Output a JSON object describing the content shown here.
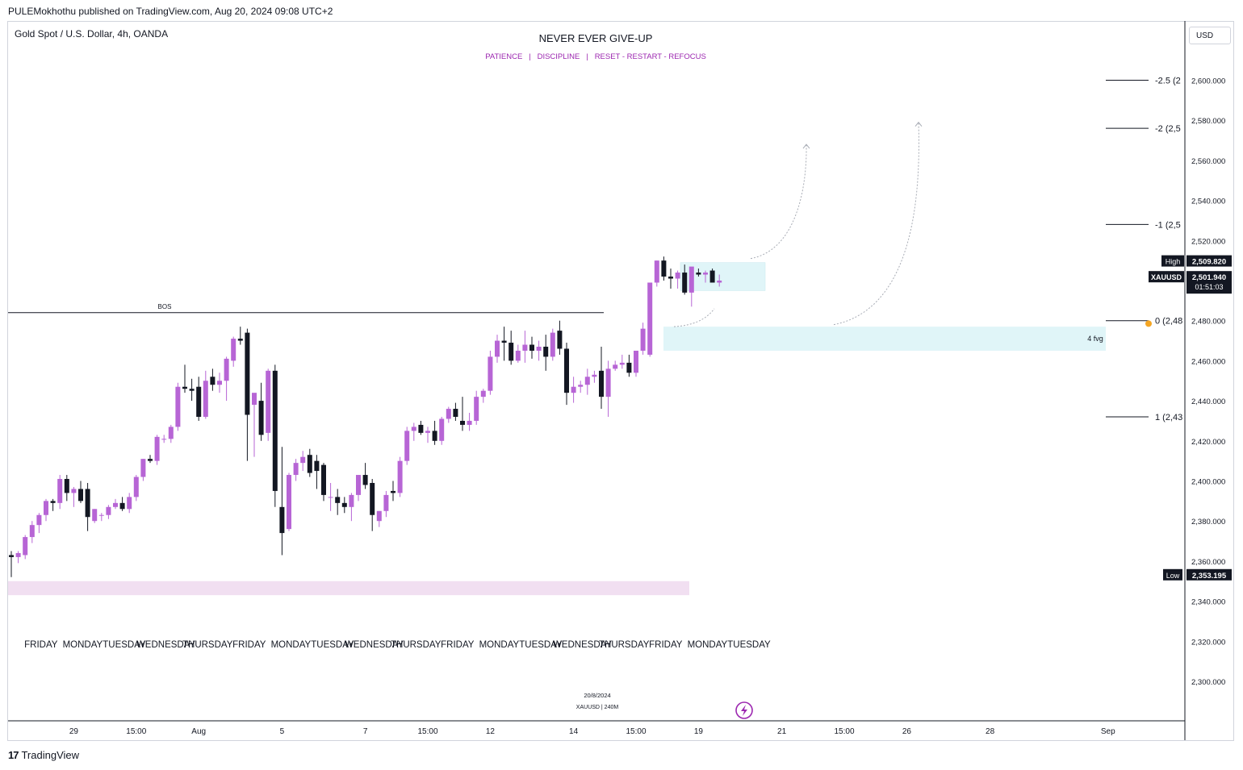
{
  "publish_line": "PULEMokhothu published on TradingView.com, Aug 20, 2024 09:08 UTC+2",
  "footer_logo": "TradingView",
  "chart_data": {
    "type": "candlestick",
    "symbol_title": "Gold Spot / U.S. Dollar, 4h, OANDA",
    "title": "NEVER EVER GIVE-UP",
    "subtitle": "PATIENCE   |   DISCIPLINE   |   RESET - RESTART - REFOCUS",
    "currency": "USD",
    "ylim": [
      2280,
      2620
    ],
    "y_ticks": [
      "2,600.000",
      "2,580.000",
      "2,560.000",
      "2,540.000",
      "2,520.000",
      "2,500.000",
      "2,480.000",
      "2,460.000",
      "2,440.000",
      "2,420.000",
      "2,400.000",
      "2,380.000",
      "2,360.000",
      "2,340.000",
      "2,320.000",
      "2,300.000"
    ],
    "y_tick_values": [
      2600,
      2580,
      2560,
      2540,
      2520,
      2500,
      2480,
      2460,
      2440,
      2420,
      2400,
      2380,
      2360,
      2340,
      2320,
      2300
    ],
    "x_ticks": [
      {
        "label": "29",
        "bar": 9
      },
      {
        "label": "15:00",
        "bar": 18
      },
      {
        "label": "Aug",
        "bar": 27
      },
      {
        "label": "5",
        "bar": 39
      },
      {
        "label": "7",
        "bar": 51
      },
      {
        "label": "15:00",
        "bar": 60
      },
      {
        "label": "12",
        "bar": 69
      },
      {
        "label": "14",
        "bar": 81
      },
      {
        "label": "15:00",
        "bar": 90
      },
      {
        "label": "19",
        "bar": 99
      },
      {
        "label": "21",
        "bar": 111
      },
      {
        "label": "15:00",
        "bar": 120
      },
      {
        "label": "26",
        "bar": 129
      },
      {
        "label": "28",
        "bar": 141
      },
      {
        "label": "Sep",
        "bar": 158
      }
    ],
    "day_labels": [
      {
        "label": "FRIDAY",
        "bar": 3
      },
      {
        "label": "MONDAY",
        "bar": 9
      },
      {
        "label": "TUESDAY",
        "bar": 15
      },
      {
        "label": "WEDNESDAY",
        "bar": 21
      },
      {
        "label": "THURSDAY",
        "bar": 27
      },
      {
        "label": "FRIDAY",
        "bar": 33
      },
      {
        "label": "MONDAY",
        "bar": 39
      },
      {
        "label": "TUESDAY",
        "bar": 45
      },
      {
        "label": "WEDNESDAY",
        "bar": 51
      },
      {
        "label": "THURSDAY",
        "bar": 57
      },
      {
        "label": "FRIDAY",
        "bar": 63
      },
      {
        "label": "MONDAY",
        "bar": 69
      },
      {
        "label": "TUESDAY",
        "bar": 75
      },
      {
        "label": "WEDNESDAY",
        "bar": 81
      },
      {
        "label": "THURSDAY",
        "bar": 87
      },
      {
        "label": "FRIDAY",
        "bar": 93
      },
      {
        "label": "MONDAY",
        "bar": 99
      },
      {
        "label": "TUESDAY",
        "bar": 105
      }
    ],
    "candles": [
      [
        2363,
        2365,
        2352,
        2362
      ],
      [
        2362,
        2365,
        2359,
        2364
      ],
      [
        2363,
        2373,
        2361,
        2372
      ],
      [
        2372,
        2380,
        2369,
        2378
      ],
      [
        2378,
        2384,
        2374,
        2383
      ],
      [
        2383,
        2391,
        2380,
        2390
      ],
      [
        2390,
        2391,
        2385,
        2389
      ],
      [
        2389,
        2403,
        2386,
        2401
      ],
      [
        2401,
        2403,
        2390,
        2394
      ],
      [
        2394,
        2397,
        2387,
        2396
      ],
      [
        2396,
        2400,
        2389,
        2390
      ],
      [
        2396,
        2399,
        2375,
        2382
      ],
      [
        2380,
        2386,
        2379,
        2386
      ],
      [
        2383,
        2384,
        2380,
        2383
      ],
      [
        2383,
        2388,
        2381,
        2387
      ],
      [
        2387,
        2391,
        2386,
        2389
      ],
      [
        2389,
        2392,
        2385,
        2386
      ],
      [
        2386,
        2394,
        2384,
        2392
      ],
      [
        2392,
        2403,
        2390,
        2402
      ],
      [
        2402,
        2411,
        2400,
        2411
      ],
      [
        2411,
        2413,
        2409,
        2410
      ],
      [
        2410,
        2423,
        2408,
        2422
      ],
      [
        2421,
        2423,
        2419,
        2421
      ],
      [
        2421,
        2428,
        2419,
        2427
      ],
      [
        2427,
        2449,
        2425,
        2447
      ],
      [
        2447,
        2458,
        2444,
        2446
      ],
      [
        2446,
        2451,
        2440,
        2445
      ],
      [
        2447,
        2452,
        2430,
        2432
      ],
      [
        2432,
        2455,
        2431,
        2450
      ],
      [
        2452,
        2456,
        2445,
        2448
      ],
      [
        2448,
        2454,
        2444,
        2450
      ],
      [
        2450,
        2462,
        2440,
        2461
      ],
      [
        2460,
        2472,
        2457,
        2471
      ],
      [
        2471,
        2477,
        2468,
        2470
      ],
      [
        2474,
        2476,
        2410,
        2433
      ],
      [
        2438,
        2441,
        2412,
        2444
      ],
      [
        2440,
        2449,
        2420,
        2423
      ],
      [
        2424,
        2456,
        2420,
        2455
      ],
      [
        2455,
        2458,
        2387,
        2395
      ],
      [
        2387,
        2417,
        2363,
        2374
      ],
      [
        2376,
        2404,
        2375,
        2403
      ],
      [
        2403,
        2411,
        2400,
        2409
      ],
      [
        2409,
        2415,
        2405,
        2412
      ],
      [
        2413,
        2416,
        2402,
        2404
      ],
      [
        2410,
        2413,
        2396,
        2405
      ],
      [
        2408,
        2409,
        2390,
        2393
      ],
      [
        2392,
        2399,
        2385,
        2392
      ],
      [
        2392,
        2396,
        2383,
        2389
      ],
      [
        2389,
        2392,
        2384,
        2387
      ],
      [
        2387,
        2394,
        2380,
        2393
      ],
      [
        2393,
        2403,
        2390,
        2403
      ],
      [
        2403,
        2409,
        2396,
        2398
      ],
      [
        2399,
        2401,
        2375,
        2383
      ],
      [
        2380,
        2385,
        2377,
        2385
      ],
      [
        2385,
        2395,
        2382,
        2393
      ],
      [
        2395,
        2400,
        2390,
        2394
      ],
      [
        2394,
        2412,
        2392,
        2410
      ],
      [
        2410,
        2427,
        2408,
        2425
      ],
      [
        2425,
        2429,
        2420,
        2427
      ],
      [
        2428,
        2430,
        2423,
        2424
      ],
      [
        2424,
        2427,
        2419,
        2425
      ],
      [
        2425,
        2430,
        2418,
        2420
      ],
      [
        2420,
        2432,
        2418,
        2431
      ],
      [
        2431,
        2437,
        2429,
        2436
      ],
      [
        2436,
        2439,
        2430,
        2432
      ],
      [
        2430,
        2442,
        2425,
        2428
      ],
      [
        2428,
        2434,
        2425,
        2430
      ],
      [
        2430,
        2445,
        2428,
        2442
      ],
      [
        2442,
        2446,
        2439,
        2445
      ],
      [
        2445,
        2465,
        2443,
        2462
      ],
      [
        2462,
        2473,
        2459,
        2470
      ],
      [
        2470,
        2477,
        2460,
        2469
      ],
      [
        2469,
        2475,
        2458,
        2460
      ],
      [
        2460,
        2468,
        2459,
        2465
      ],
      [
        2465,
        2475,
        2459,
        2468
      ],
      [
        2468,
        2472,
        2461,
        2465
      ],
      [
        2465,
        2470,
        2460,
        2467
      ],
      [
        2467,
        2473,
        2455,
        2462
      ],
      [
        2462,
        2476,
        2460,
        2474
      ],
      [
        2475,
        2480,
        2463,
        2466
      ],
      [
        2466,
        2469,
        2438,
        2444
      ],
      [
        2444,
        2452,
        2439,
        2447
      ],
      [
        2447,
        2450,
        2444,
        2448
      ],
      [
        2448,
        2456,
        2443,
        2452
      ],
      [
        2452,
        2455,
        2449,
        2453
      ],
      [
        2455,
        2467,
        2436,
        2442
      ],
      [
        2442,
        2460,
        2432,
        2456
      ],
      [
        2456,
        2460,
        2455,
        2458
      ],
      [
        2458,
        2463,
        2456,
        2459
      ],
      [
        2459,
        2463,
        2452,
        2454
      ],
      [
        2454,
        2465,
        2452,
        2465
      ],
      [
        2465,
        2479,
        2463,
        2476
      ],
      [
        2463,
        2499,
        2462,
        2499
      ],
      [
        2499,
        2510,
        2497,
        2510
      ],
      [
        2510,
        2512,
        2500,
        2502
      ],
      [
        2502,
        2506,
        2496,
        2501
      ],
      [
        2501,
        2505,
        2496,
        2504
      ],
      [
        2504,
        2508,
        2493,
        2494
      ],
      [
        2494,
        2504,
        2487,
        2507
      ],
      [
        2504,
        2506,
        2502,
        2503
      ],
      [
        2503,
        2505,
        2499,
        2504
      ],
      [
        2505,
        2506,
        2500,
        2499
      ],
      [
        2499,
        2503,
        2497,
        2500
      ]
    ],
    "annotations": {
      "bos_label": "BOS",
      "bos_level": 2484,
      "fvg_label": "4 fvg",
      "fvg_range": [
        2465,
        2477
      ],
      "consolidation_range": [
        2495,
        2509
      ],
      "demand_range": [
        2343,
        2350
      ],
      "fib_levels": [
        {
          "label": "-2.5 (2",
          "value": 2600
        },
        {
          "label": "-2 (2,5",
          "value": 2576
        },
        {
          "label": "-1 (2,5",
          "value": 2528
        },
        {
          "label": "0 (2,48",
          "value": 2480
        },
        {
          "label": "1 (2,43",
          "value": 2432
        }
      ],
      "high_label": "High",
      "high_value": "2,509.820",
      "high_num": 2509.82,
      "low_label": "Low",
      "low_value": "2,353.195",
      "low_num": 2353.195,
      "last_symbol": "XAUUSD",
      "last_value": "2,501.940",
      "last_num": 2501.94,
      "countdown": "01:51:03",
      "watermark_date": "20/8/2024",
      "watermark_symbol": "XAUUSD | 240M"
    },
    "colors": {
      "up": "#b765d5",
      "down": "#131722",
      "fvg_fill": "#e0f5f8",
      "demand_fill": "#f1dff1",
      "accent": "#9c27b0",
      "grid_line": "#131722"
    }
  }
}
